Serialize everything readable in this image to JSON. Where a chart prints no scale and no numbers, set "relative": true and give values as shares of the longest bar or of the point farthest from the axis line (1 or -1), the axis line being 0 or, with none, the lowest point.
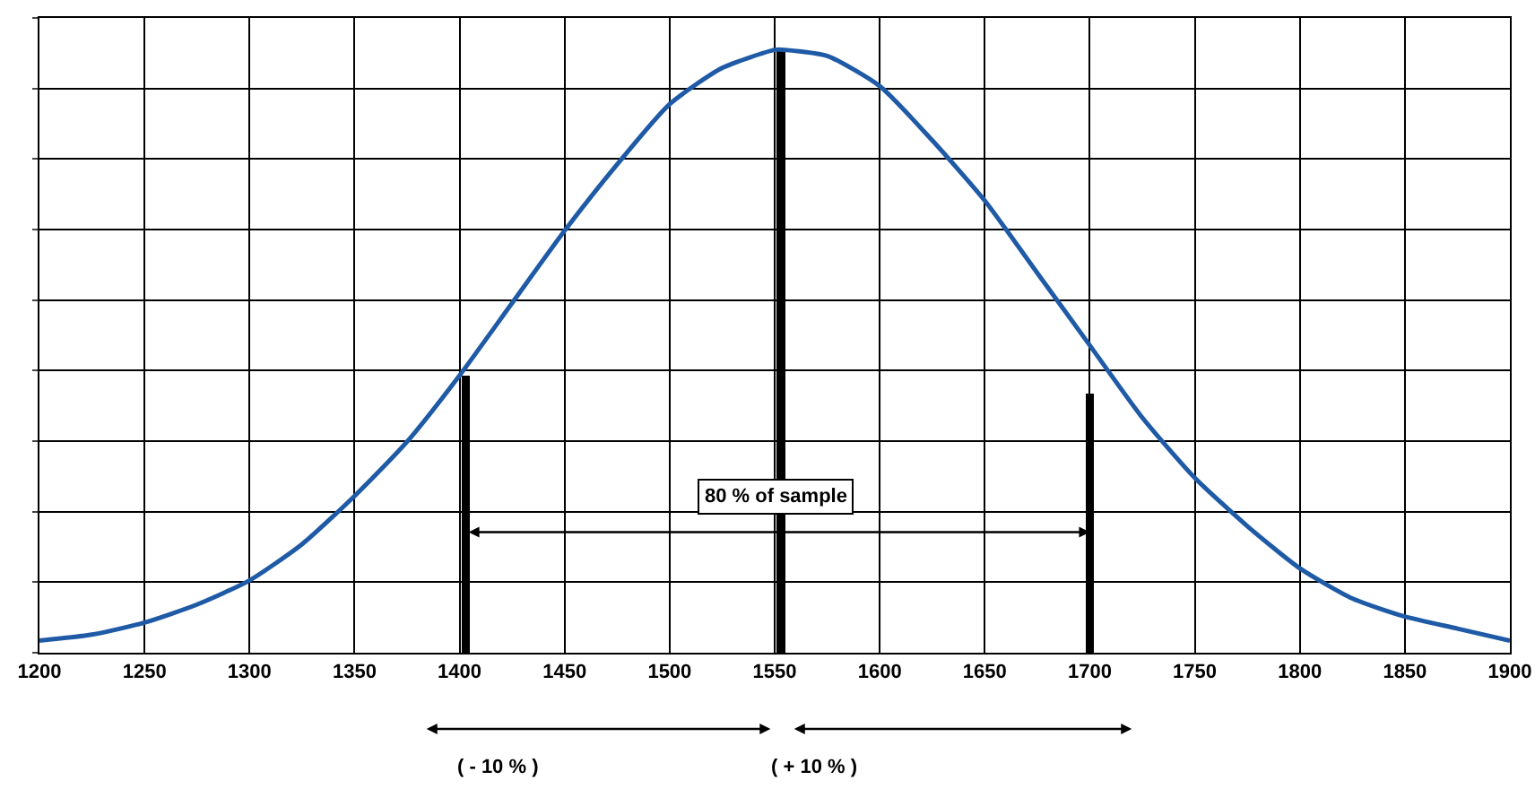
{
  "chart_data": {
    "type": "line",
    "relative": true,
    "x": [
      1200,
      1225,
      1250,
      1275,
      1300,
      1325,
      1350,
      1375,
      1400,
      1425,
      1450,
      1475,
      1500,
      1525,
      1550,
      1555,
      1575,
      1600,
      1625,
      1650,
      1675,
      1700,
      1725,
      1750,
      1775,
      1800,
      1825,
      1850,
      1875,
      1900
    ],
    "series": [
      {
        "color": "#1f5aa6",
        "values": [
          0.02,
          0.03,
          0.05,
          0.08,
          0.12,
          0.18,
          0.26,
          0.35,
          0.46,
          0.58,
          0.7,
          0.81,
          0.91,
          0.97,
          1,
          1,
          0.99,
          0.94,
          0.85,
          0.75,
          0.63,
          0.51,
          0.39,
          0.29,
          0.21,
          0.14,
          0.09,
          0.06,
          0.04,
          0.02
        ]
      },
      {
        "type": "bar",
        "color": "#000000",
        "x": [
          1403,
          1553,
          1700
        ],
        "values": [
          0.46,
          1,
          0.43
        ]
      }
    ],
    "xlim": [
      1200,
      1900
    ],
    "xticks": [
      1200,
      1250,
      1300,
      1350,
      1400,
      1450,
      1500,
      1550,
      1600,
      1650,
      1700,
      1750,
      1800,
      1850,
      1900
    ],
    "grid": true,
    "marker": "none",
    "line_style": "solid",
    "annotations": [
      {
        "text": "80 % of sample",
        "x": 1550,
        "y": 0.23
      },
      "( - 10 % )",
      "( + 10 % )"
    ]
  }
}
